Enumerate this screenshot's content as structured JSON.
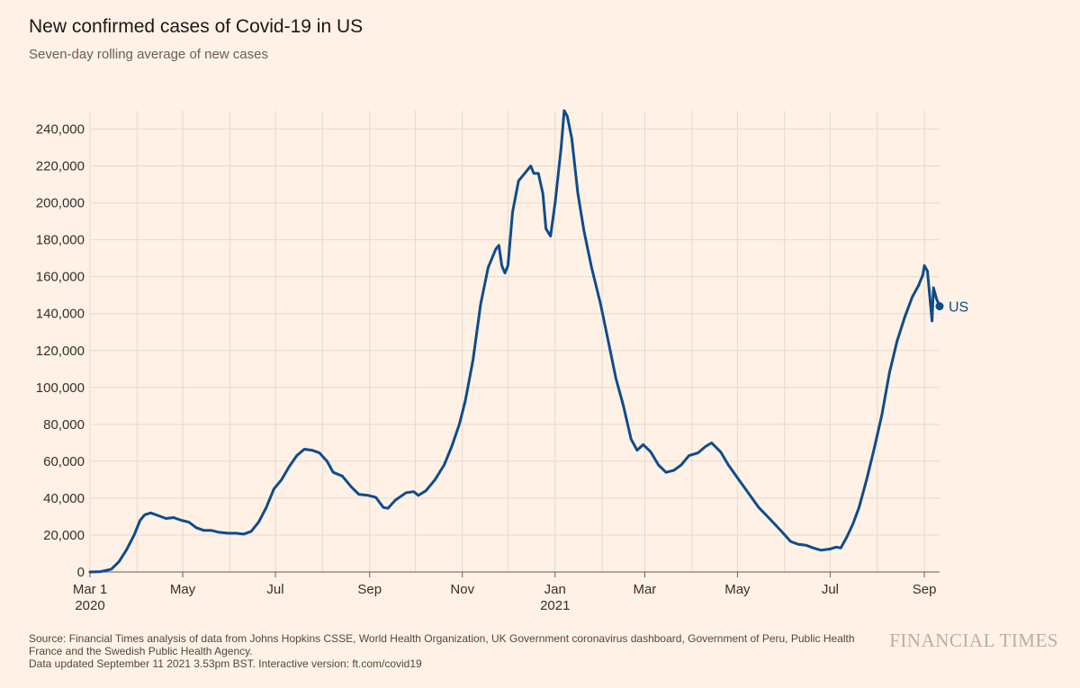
{
  "title": "New confirmed cases of Covid-19 in US",
  "subtitle": "Seven-day rolling average of new cases",
  "source": {
    "line1": "Source: Financial Times analysis of data from Johns Hopkins CSSE, World Health Organization, UK Government coronavirus dashboard, Government of Peru, Public Health France and the Swedish Public Health Agency.",
    "line2": "Data updated September 11 2021 3.53pm BST. Interactive version: ft.com/covid19"
  },
  "brand": "FINANCIAL TIMES",
  "colors": {
    "background": "#FFF1E5",
    "line": "#0F4C8A",
    "grid": "#E6D9CE",
    "axis": "#66605C",
    "text": "#33302E"
  },
  "chart_data": {
    "type": "line",
    "title": "New confirmed cases of Covid-19 in US",
    "subtitle": "Seven-day rolling average of new cases",
    "xlabel": "",
    "ylabel": "",
    "xlim": [
      "2020-03-01",
      "2021-09-11"
    ],
    "ylim": [
      0,
      250000
    ],
    "grid": true,
    "y_ticks": [
      0,
      20000,
      40000,
      60000,
      80000,
      100000,
      120000,
      140000,
      160000,
      180000,
      200000,
      220000,
      240000
    ],
    "y_tick_labels": [
      "0",
      "20,000",
      "40,000",
      "60,000",
      "80,000",
      "100,000",
      "120,000",
      "140,000",
      "160,000",
      "180,000",
      "200,000",
      "220,000",
      "240,000"
    ],
    "x_ticks": [
      {
        "date": "2020-03-01",
        "label": "Mar 1",
        "sublabel": "2020"
      },
      {
        "date": "2020-05-01",
        "label": "May",
        "sublabel": ""
      },
      {
        "date": "2020-07-01",
        "label": "Jul",
        "sublabel": ""
      },
      {
        "date": "2020-09-01",
        "label": "Sep",
        "sublabel": ""
      },
      {
        "date": "2020-11-01",
        "label": "Nov",
        "sublabel": ""
      },
      {
        "date": "2021-01-01",
        "label": "Jan",
        "sublabel": "2021"
      },
      {
        "date": "2021-03-01",
        "label": "Mar",
        "sublabel": ""
      },
      {
        "date": "2021-05-01",
        "label": "May",
        "sublabel": ""
      },
      {
        "date": "2021-07-01",
        "label": "Jul",
        "sublabel": ""
      },
      {
        "date": "2021-09-01",
        "label": "Sep",
        "sublabel": ""
      }
    ],
    "grid_dates": [
      "2020-03-01",
      "2020-04-01",
      "2020-05-01",
      "2020-06-01",
      "2020-07-01",
      "2020-08-01",
      "2020-09-01",
      "2020-10-01",
      "2020-11-01",
      "2020-12-01",
      "2021-01-01",
      "2021-02-01",
      "2021-03-01",
      "2021-04-01",
      "2021-05-01",
      "2021-06-01",
      "2021-07-01",
      "2021-08-01",
      "2021-09-01"
    ],
    "series": [
      {
        "name": "US",
        "end_label": "US",
        "points": [
          [
            "2020-03-01",
            0
          ],
          [
            "2020-03-08",
            200
          ],
          [
            "2020-03-15",
            1500
          ],
          [
            "2020-03-20",
            5500
          ],
          [
            "2020-03-25",
            12000
          ],
          [
            "2020-03-30",
            20000
          ],
          [
            "2020-04-03",
            28000
          ],
          [
            "2020-04-06",
            31000
          ],
          [
            "2020-04-10",
            32000
          ],
          [
            "2020-04-15",
            30500
          ],
          [
            "2020-04-20",
            29000
          ],
          [
            "2020-04-25",
            29500
          ],
          [
            "2020-04-30",
            28000
          ],
          [
            "2020-05-05",
            27000
          ],
          [
            "2020-05-10",
            24000
          ],
          [
            "2020-05-15",
            22500
          ],
          [
            "2020-05-20",
            22500
          ],
          [
            "2020-05-25",
            21500
          ],
          [
            "2020-05-31",
            21000
          ],
          [
            "2020-06-05",
            21000
          ],
          [
            "2020-06-10",
            20500
          ],
          [
            "2020-06-15",
            22000
          ],
          [
            "2020-06-20",
            27000
          ],
          [
            "2020-06-25",
            35000
          ],
          [
            "2020-06-30",
            45000
          ],
          [
            "2020-07-05",
            50000
          ],
          [
            "2020-07-10",
            57000
          ],
          [
            "2020-07-15",
            63000
          ],
          [
            "2020-07-20",
            66500
          ],
          [
            "2020-07-25",
            66000
          ],
          [
            "2020-07-30",
            64500
          ],
          [
            "2020-08-04",
            60000
          ],
          [
            "2020-08-08",
            54000
          ],
          [
            "2020-08-14",
            52000
          ],
          [
            "2020-08-20",
            46000
          ],
          [
            "2020-08-25",
            42000
          ],
          [
            "2020-08-31",
            41500
          ],
          [
            "2020-09-05",
            40500
          ],
          [
            "2020-09-10",
            35000
          ],
          [
            "2020-09-13",
            34500
          ],
          [
            "2020-09-18",
            39000
          ],
          [
            "2020-09-25",
            43000
          ],
          [
            "2020-09-30",
            43500
          ],
          [
            "2020-10-03",
            41500
          ],
          [
            "2020-10-08",
            44000
          ],
          [
            "2020-10-14",
            50000
          ],
          [
            "2020-10-20",
            58000
          ],
          [
            "2020-10-25",
            68000
          ],
          [
            "2020-10-30",
            80000
          ],
          [
            "2020-11-03",
            93000
          ],
          [
            "2020-11-08",
            115000
          ],
          [
            "2020-11-13",
            145000
          ],
          [
            "2020-11-18",
            165000
          ],
          [
            "2020-11-23",
            175000
          ],
          [
            "2020-11-25",
            177000
          ],
          [
            "2020-11-27",
            166000
          ],
          [
            "2020-11-29",
            162000
          ],
          [
            "2020-12-01",
            166000
          ],
          [
            "2020-12-04",
            195000
          ],
          [
            "2020-12-08",
            212000
          ],
          [
            "2020-12-12",
            216000
          ],
          [
            "2020-12-16",
            220000
          ],
          [
            "2020-12-18",
            216000
          ],
          [
            "2020-12-21",
            216000
          ],
          [
            "2020-12-24",
            205000
          ],
          [
            "2020-12-26",
            186000
          ],
          [
            "2020-12-29",
            182000
          ],
          [
            "2021-01-01",
            200000
          ],
          [
            "2021-01-05",
            230000
          ],
          [
            "2021-01-07",
            250000
          ],
          [
            "2021-01-09",
            247000
          ],
          [
            "2021-01-12",
            235000
          ],
          [
            "2021-01-16",
            205000
          ],
          [
            "2021-01-20",
            185000
          ],
          [
            "2021-01-25",
            165000
          ],
          [
            "2021-01-31",
            145000
          ],
          [
            "2021-02-05",
            125000
          ],
          [
            "2021-02-10",
            105000
          ],
          [
            "2021-02-15",
            90000
          ],
          [
            "2021-02-20",
            72000
          ],
          [
            "2021-02-24",
            66000
          ],
          [
            "2021-02-28",
            69000
          ],
          [
            "2021-03-05",
            65000
          ],
          [
            "2021-03-10",
            58000
          ],
          [
            "2021-03-15",
            54000
          ],
          [
            "2021-03-20",
            55000
          ],
          [
            "2021-03-25",
            58000
          ],
          [
            "2021-03-30",
            63000
          ],
          [
            "2021-04-05",
            64500
          ],
          [
            "2021-04-10",
            68000
          ],
          [
            "2021-04-14",
            70000
          ],
          [
            "2021-04-20",
            65000
          ],
          [
            "2021-04-25",
            58000
          ],
          [
            "2021-05-01",
            51000
          ],
          [
            "2021-05-08",
            43000
          ],
          [
            "2021-05-15",
            35000
          ],
          [
            "2021-05-22",
            29000
          ],
          [
            "2021-05-30",
            22000
          ],
          [
            "2021-06-05",
            16500
          ],
          [
            "2021-06-10",
            15000
          ],
          [
            "2021-06-15",
            14500
          ],
          [
            "2021-06-20",
            13000
          ],
          [
            "2021-06-25",
            11800
          ],
          [
            "2021-07-01",
            12500
          ],
          [
            "2021-07-05",
            13500
          ],
          [
            "2021-07-08",
            13000
          ],
          [
            "2021-07-12",
            19000
          ],
          [
            "2021-07-16",
            26000
          ],
          [
            "2021-07-20",
            35000
          ],
          [
            "2021-07-25",
            50000
          ],
          [
            "2021-07-30",
            67000
          ],
          [
            "2021-08-04",
            85000
          ],
          [
            "2021-08-09",
            108000
          ],
          [
            "2021-08-14",
            125000
          ],
          [
            "2021-08-19",
            138000
          ],
          [
            "2021-08-24",
            149000
          ],
          [
            "2021-08-28",
            155000
          ],
          [
            "2021-08-31",
            161000
          ],
          [
            "2021-09-01",
            166000
          ],
          [
            "2021-09-03",
            163000
          ],
          [
            "2021-09-06",
            136000
          ],
          [
            "2021-09-07",
            154000
          ],
          [
            "2021-09-09",
            148000
          ],
          [
            "2021-09-10",
            146000
          ],
          [
            "2021-09-11",
            144000
          ]
        ]
      }
    ]
  }
}
